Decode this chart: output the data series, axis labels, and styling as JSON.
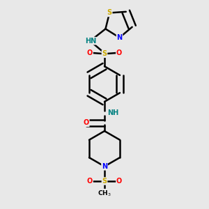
{
  "bg_color": "#e8e8e8",
  "atom_colors": {
    "C": "#000000",
    "N": "#0000ff",
    "O": "#ff0000",
    "S": "#ccaa00",
    "H": "#008080"
  },
  "bond_color": "#000000",
  "bond_width": 1.8,
  "dbo": 0.018
}
